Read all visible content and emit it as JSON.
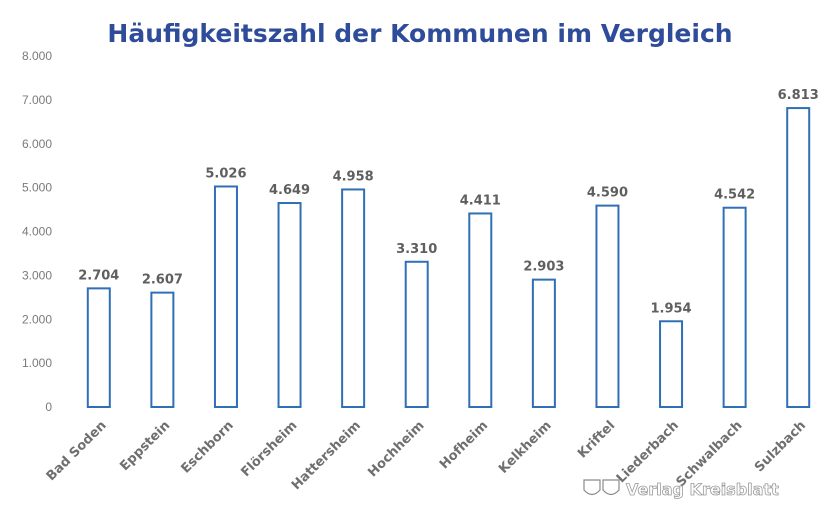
{
  "chart_data": {
    "type": "bar",
    "title": "Häufigkeitszahl der Kommunen im Vergleich",
    "categories": [
      "Bad Soden",
      "Eppstein",
      "Eschborn",
      "Flörsheim",
      "Hattersheim",
      "Hochheim",
      "Hofheim",
      "Kelkheim",
      "Kriftel",
      "Liederbach",
      "Schwalbach",
      "Sulzbach"
    ],
    "values": [
      2704,
      2607,
      5026,
      4649,
      4958,
      3310,
      4411,
      2903,
      4590,
      1954,
      4542,
      6813
    ],
    "data_labels": [
      "2.704",
      "2.607",
      "5.026",
      "4.649",
      "4.958",
      "3.310",
      "4.411",
      "2.903",
      "4.590",
      "1.954",
      "4.542",
      "6.813"
    ],
    "yticks": [
      "0",
      "1.000",
      "2.000",
      "3.000",
      "4.000",
      "5.000",
      "6.000",
      "7.000",
      "8.000"
    ],
    "ylim": [
      0,
      8000
    ],
    "grid": false,
    "legend": "none",
    "colors": {
      "bar_outline": "#2F6FB6",
      "title": "#2E4C9A",
      "labels": "#5f5f5f"
    }
  },
  "watermark": {
    "text": "Verlag Kreisblatt",
    "icon": "crest-icon"
  }
}
